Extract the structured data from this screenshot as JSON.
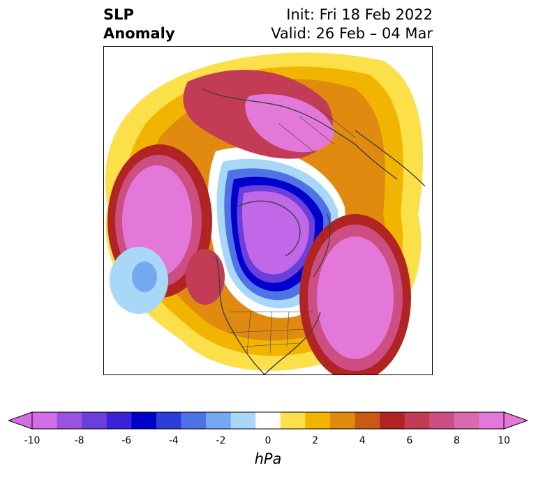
{
  "title": {
    "left_line1": "SLP",
    "left_line2": "Anomaly",
    "right_line1": "Init: Fri 18 Feb 2022",
    "right_line2": "Valid: 26 Feb – 04 Mar"
  },
  "colorbar": {
    "unit": "hPa",
    "ticks": [
      "-10",
      "-8",
      "-6",
      "-4",
      "-2",
      "0",
      "2",
      "4",
      "6",
      "8",
      "10"
    ],
    "colors": [
      "#d36ee6",
      "#9c52e0",
      "#6b3fdc",
      "#3a22d6",
      "#0000cc",
      "#2a3ed8",
      "#4f73e6",
      "#74a8f0",
      "#a8d8f8",
      "#ffffff",
      "#fbe04a",
      "#f1b400",
      "#e08a10",
      "#c85a14",
      "#b22424",
      "#c23c55",
      "#cc4e82",
      "#d96aae",
      "#e478d8"
    ],
    "under_color": "#d36ee6",
    "over_color": "#e478d8"
  },
  "map": {
    "projection": "north-polar-stereographic",
    "features": [
      "anomaly-shading",
      "coastlines",
      "country-borders",
      "state-borders"
    ]
  }
}
